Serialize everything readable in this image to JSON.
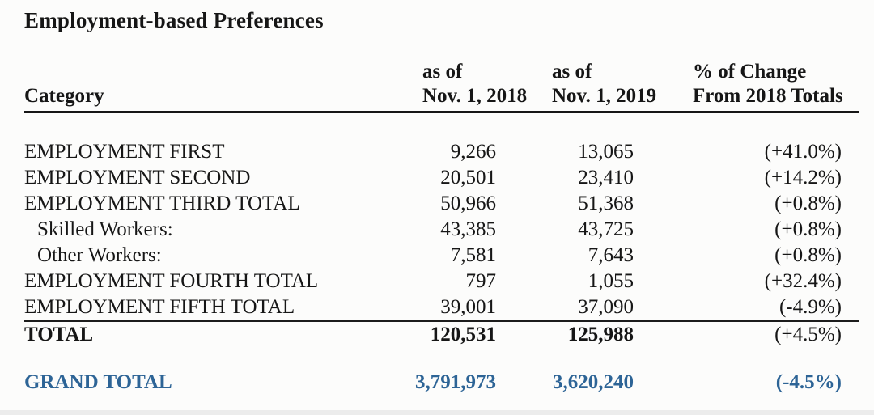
{
  "page": {
    "background": "#fcfcfb",
    "text_color": "#161616",
    "accent_blue": "#2d6496"
  },
  "title": "Employment-based Preferences",
  "table": {
    "header": {
      "category": "Category",
      "col_2018_line1": "as of",
      "col_2018_line2": "Nov. 1, 2018",
      "col_2019_line1": "as of",
      "col_2019_line2": "Nov. 1, 2019",
      "change_line1": "% of Change",
      "change_line2": "From 2018 Totals"
    },
    "rows": [
      {
        "label": "EMPLOYMENT FIRST",
        "v2018": "9,266",
        "v2019": "13,065",
        "change": "(+41.0%)"
      },
      {
        "label": "EMPLOYMENT SECOND",
        "v2018": "20,501",
        "v2019": "23,410",
        "change": "(+14.2%)"
      },
      {
        "label": "EMPLOYMENT THIRD TOTAL",
        "v2018": "50,966",
        "v2019": "51,368",
        "change": "(+0.8%)"
      },
      {
        "label": "Skilled Workers:",
        "v2018": "43,385",
        "v2019": "43,725",
        "change": "(+0.8%)"
      },
      {
        "label": "Other Workers:",
        "v2018": "7,581",
        "v2019": "7,643",
        "change": "(+0.8%)"
      },
      {
        "label": "EMPLOYMENT FOURTH TOTAL",
        "v2018": "797",
        "v2019": "1,055",
        "change": "(+32.4%)"
      },
      {
        "label": "EMPLOYMENT FIFTH TOTAL",
        "v2018": "39,001",
        "v2019": "37,090",
        "change": "(-4.9%)"
      },
      {
        "label": "TOTAL",
        "v2018": "120,531",
        "v2019": "125,988",
        "change": "(+4.5%)"
      }
    ],
    "grand_total": {
      "label": "GRAND TOTAL",
      "v2018": "3,791,973",
      "v2019": "3,620,240",
      "change": "(-4.5%)"
    }
  }
}
